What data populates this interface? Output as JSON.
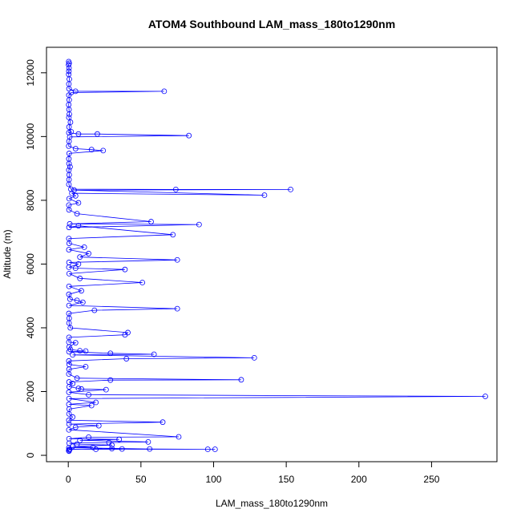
{
  "chart_data": {
    "type": "line",
    "title": "ATOM4 Southbound LAM_mass_180to1290nm",
    "xlabel": "LAM_mass_180to1290nm",
    "ylabel": "Altitude (m)",
    "xlim": [
      -15,
      295
    ],
    "ylim": [
      -200,
      12800
    ],
    "x_ticks": [
      0,
      50,
      100,
      150,
      200,
      250
    ],
    "x_tick_labels": [
      "0",
      "50",
      "100",
      "150",
      "200",
      "250"
    ],
    "y_ticks": [
      0,
      2000,
      4000,
      6000,
      8000,
      10000,
      12000
    ],
    "y_tick_labels": [
      "0",
      "2000",
      "4000",
      "6000",
      "8000",
      "10000",
      "12000"
    ],
    "grid": false,
    "legend": "none",
    "marker": "open-circle",
    "color": "#0000ff",
    "series": [
      {
        "points": [
          [
            0.3,
            12350
          ],
          [
            0.6,
            12300
          ],
          [
            0.2,
            12250
          ],
          [
            0.5,
            12150
          ],
          [
            0.4,
            12050
          ],
          [
            0.3,
            11950
          ],
          [
            0.7,
            11800
          ],
          [
            0.4,
            11650
          ],
          [
            0.5,
            11500
          ],
          [
            5,
            11420
          ],
          [
            66,
            11420
          ],
          [
            2,
            11380
          ],
          [
            0.4,
            11300
          ],
          [
            0.6,
            11150
          ],
          [
            0.3,
            11000
          ],
          [
            0.5,
            10850
          ],
          [
            0.7,
            10700
          ],
          [
            0.4,
            10600
          ],
          [
            1.5,
            10450
          ],
          [
            0.5,
            10300
          ],
          [
            2,
            10150
          ],
          [
            0.4,
            10120
          ],
          [
            7,
            10080
          ],
          [
            20,
            10080
          ],
          [
            83,
            10030
          ],
          [
            1,
            9990
          ],
          [
            0.5,
            9850
          ],
          [
            0.3,
            9700
          ],
          [
            5,
            9620
          ],
          [
            16,
            9590
          ],
          [
            24,
            9560
          ],
          [
            0.6,
            9470
          ],
          [
            0.4,
            9300
          ],
          [
            0.5,
            9150
          ],
          [
            1.2,
            9050
          ],
          [
            0.4,
            8950
          ],
          [
            0.6,
            8800
          ],
          [
            0.5,
            8650
          ],
          [
            0.4,
            8500
          ],
          [
            1.8,
            8350
          ],
          [
            74,
            8340
          ],
          [
            153,
            8340
          ],
          [
            4,
            8320
          ],
          [
            135,
            8160
          ],
          [
            2.5,
            8220
          ],
          [
            5,
            8140
          ],
          [
            0.6,
            8050
          ],
          [
            7,
            7920
          ],
          [
            0.4,
            7850
          ],
          [
            0.5,
            7700
          ],
          [
            6,
            7580
          ],
          [
            57,
            7330
          ],
          [
            1,
            7260
          ],
          [
            90,
            7240
          ],
          [
            0.5,
            7150
          ],
          [
            7,
            7200
          ],
          [
            72,
            6920
          ],
          [
            0.4,
            6800
          ],
          [
            0.6,
            6650
          ],
          [
            11,
            6530
          ],
          [
            0.4,
            6450
          ],
          [
            14,
            6330
          ],
          [
            8,
            6220
          ],
          [
            75,
            6130
          ],
          [
            0.5,
            6050
          ],
          [
            7,
            6000
          ],
          [
            0.4,
            5900
          ],
          [
            5,
            5870
          ],
          [
            39,
            5830
          ],
          [
            0.6,
            5700
          ],
          [
            8,
            5550
          ],
          [
            51,
            5420
          ],
          [
            0.5,
            5300
          ],
          [
            9,
            5160
          ],
          [
            0.4,
            5050
          ],
          [
            1.2,
            4900
          ],
          [
            6,
            4860
          ],
          [
            10,
            4800
          ],
          [
            0.5,
            4700
          ],
          [
            75,
            4600
          ],
          [
            18,
            4550
          ],
          [
            0.4,
            4450
          ],
          [
            0.6,
            4300
          ],
          [
            0.5,
            4150
          ],
          [
            1.4,
            4000
          ],
          [
            41,
            3850
          ],
          [
            39,
            3780
          ],
          [
            0.5,
            3700
          ],
          [
            0.4,
            3550
          ],
          [
            5,
            3530
          ],
          [
            0.6,
            3400
          ],
          [
            1.5,
            3320
          ],
          [
            8,
            3280
          ],
          [
            12,
            3270
          ],
          [
            0.5,
            3250
          ],
          [
            29,
            3200
          ],
          [
            59,
            3170
          ],
          [
            3,
            3150
          ],
          [
            128,
            3060
          ],
          [
            40,
            3030
          ],
          [
            0.4,
            2960
          ],
          [
            0.6,
            2850
          ],
          [
            12,
            2780
          ],
          [
            0.5,
            2700
          ],
          [
            0.4,
            2550
          ],
          [
            6,
            2420
          ],
          [
            119,
            2370
          ],
          [
            29,
            2360
          ],
          [
            0.5,
            2300
          ],
          [
            3,
            2250
          ],
          [
            0.6,
            2150
          ],
          [
            7,
            2100
          ],
          [
            9,
            2080
          ],
          [
            26,
            2060
          ],
          [
            0.4,
            1980
          ],
          [
            14,
            1900
          ],
          [
            287,
            1850
          ],
          [
            0.5,
            1780
          ],
          [
            19,
            1660
          ],
          [
            0.4,
            1600
          ],
          [
            16,
            1560
          ],
          [
            0.6,
            1450
          ],
          [
            0.5,
            1300
          ],
          [
            3,
            1200
          ],
          [
            0.4,
            1100
          ],
          [
            65,
            1040
          ],
          [
            0.5,
            980
          ],
          [
            21,
            930
          ],
          [
            5,
            880
          ],
          [
            0.4,
            800
          ],
          [
            76,
            580
          ],
          [
            14,
            570
          ],
          [
            0.5,
            520
          ],
          [
            35,
            500
          ],
          [
            8,
            470
          ],
          [
            55,
            420
          ],
          [
            28,
            400
          ],
          [
            0.6,
            380
          ],
          [
            6,
            350
          ],
          [
            30,
            320
          ],
          [
            3,
            280
          ],
          [
            17,
            250
          ],
          [
            0.4,
            240
          ],
          [
            56,
            200
          ],
          [
            96,
            190
          ],
          [
            101,
            190
          ],
          [
            1,
            190
          ],
          [
            19,
            190
          ],
          [
            37,
            200
          ],
          [
            30,
            210
          ],
          [
            0.5,
            180
          ],
          [
            0.3,
            150
          ],
          [
            0.5,
            130
          ]
        ]
      }
    ]
  }
}
